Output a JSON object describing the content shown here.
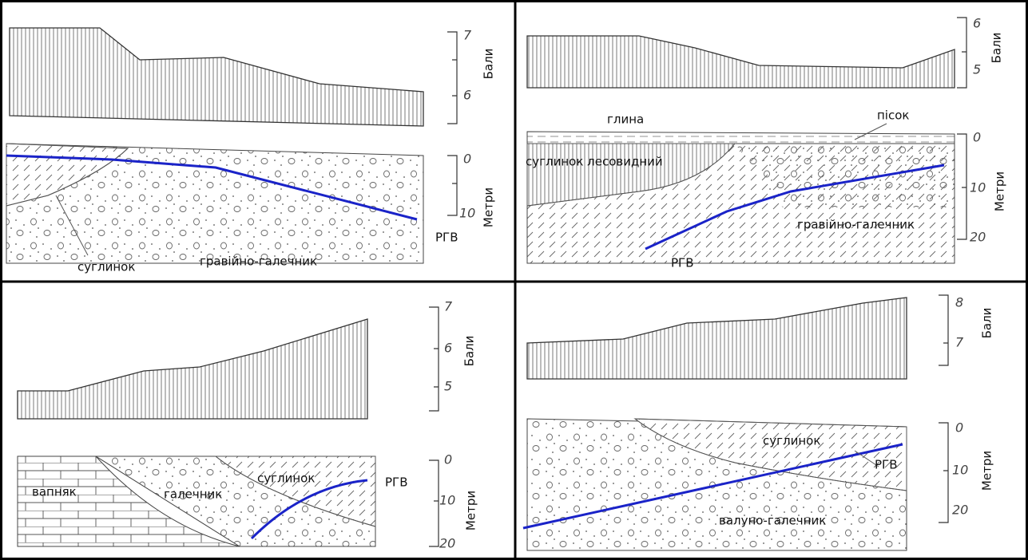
{
  "panels": [
    {
      "intensity_axis": {
        "label": "Бали",
        "ticks": [
          "7",
          "6"
        ]
      },
      "depth_axis": {
        "label": "Метри",
        "ticks": [
          "0",
          "10"
        ]
      },
      "labels": [
        "суглинок",
        "гравійно-галечник",
        "РГВ"
      ]
    },
    {
      "intensity_axis": {
        "label": "Бали",
        "ticks": [
          "6",
          "5"
        ]
      },
      "depth_axis": {
        "label": "Метри",
        "ticks": [
          "0",
          "10",
          "20"
        ]
      },
      "labels": [
        "глина",
        "пісок",
        "суглинок лесовидний",
        "гравійно-галечник",
        "РГВ"
      ]
    },
    {
      "intensity_axis": {
        "label": "Бали",
        "ticks": [
          "7",
          "6",
          "5"
        ]
      },
      "depth_axis": {
        "label": "Метри",
        "ticks": [
          "0",
          "10",
          "20"
        ]
      },
      "labels": [
        "вапняк",
        "галечник",
        "суглинок",
        "РГВ"
      ]
    },
    {
      "intensity_axis": {
        "label": "Бали",
        "ticks": [
          "8",
          "7"
        ]
      },
      "depth_axis": {
        "label": "Метри",
        "ticks": [
          "0",
          "10",
          "20"
        ]
      },
      "labels": [
        "суглинок",
        "РГВ",
        "валуно-галечник"
      ]
    }
  ]
}
